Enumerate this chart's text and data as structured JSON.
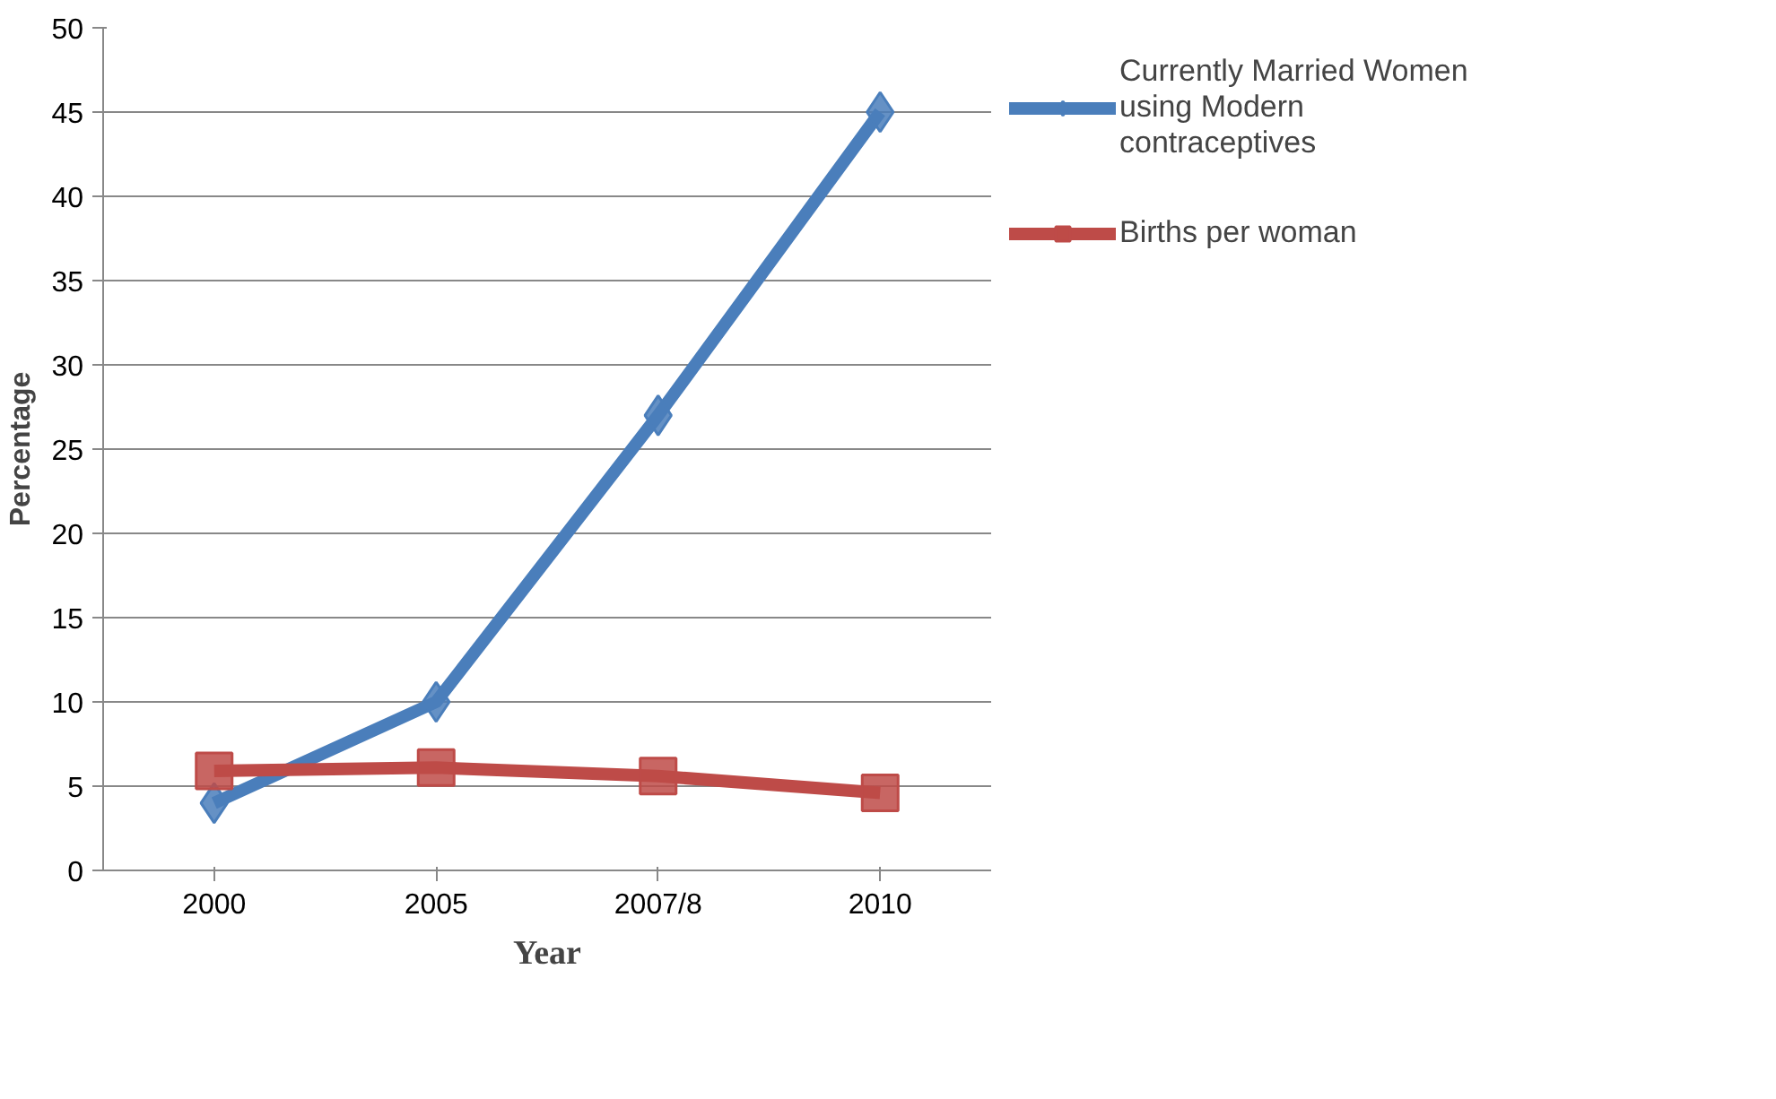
{
  "chart_data": {
    "type": "line",
    "xlabel": "Year",
    "ylabel": "Percentage",
    "categories": [
      "2000",
      "2005",
      "2007/8",
      "2010"
    ],
    "series": [
      {
        "name": "Currently Married Women using Modern contraceptives",
        "color": "#4a7ebb",
        "marker": "diamond",
        "values": [
          4,
          10,
          27,
          45
        ]
      },
      {
        "name": "Births per woman",
        "color": "#be4b48",
        "marker": "square",
        "values": [
          5.9,
          6.1,
          5.6,
          4.6
        ]
      }
    ],
    "ylim": [
      0,
      50
    ],
    "yticks": [
      0,
      5,
      10,
      15,
      20,
      25,
      30,
      35,
      40,
      45,
      50
    ],
    "grid": "y",
    "legend": "right"
  }
}
